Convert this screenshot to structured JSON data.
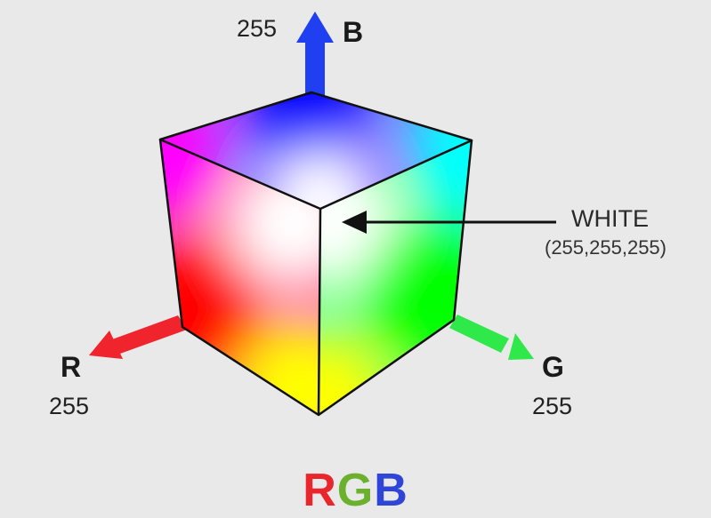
{
  "title": {
    "letters": [
      {
        "text": "R",
        "color": "#e8262b"
      },
      {
        "text": "G",
        "color": "#6cb12e"
      },
      {
        "text": "B",
        "color": "#2f45d8"
      }
    ]
  },
  "axes": {
    "b": {
      "letter": "B",
      "value": "255",
      "arrow_color": "#1f3ff0"
    },
    "r": {
      "letter": "R",
      "value": "255",
      "arrow_color": "#f0242c"
    },
    "g": {
      "letter": "G",
      "value": "255",
      "arrow_color": "#2fe84a"
    }
  },
  "annotation": {
    "label": "WHITE",
    "value": "(255,255,255)"
  },
  "colors": {
    "background": "#e9e9e9",
    "white": "#ffffff",
    "red": "#ff0000",
    "green": "#00ff00",
    "blue": "#0000ff",
    "cyan": "#00ffff",
    "magenta": "#ff00ff",
    "yellow": "#ffff00"
  }
}
